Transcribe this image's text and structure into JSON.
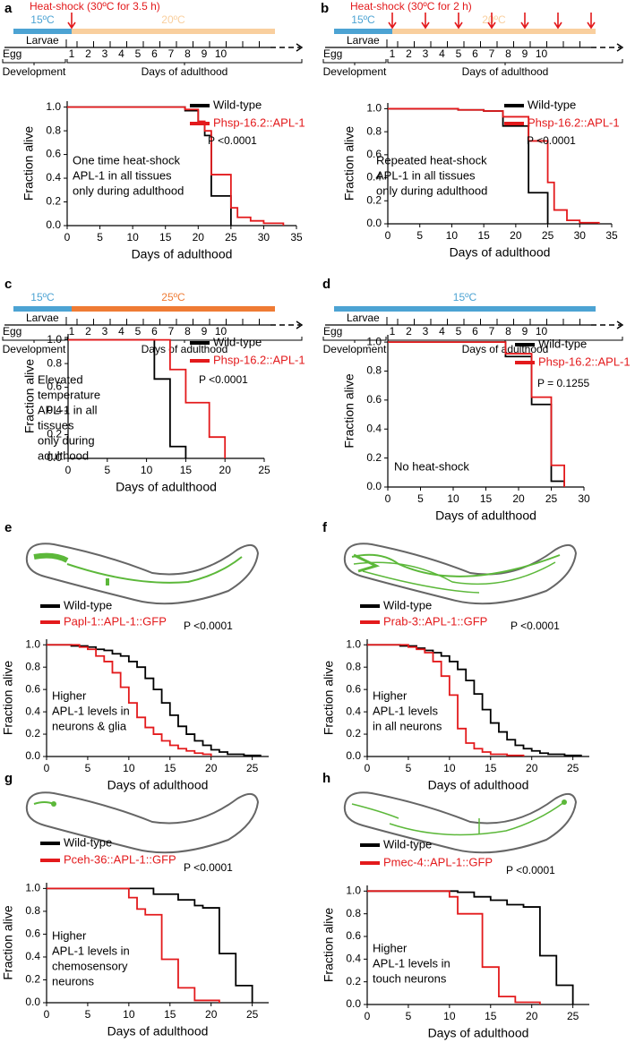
{
  "chart_data": [
    {
      "panel": "a",
      "type": "line",
      "step": true,
      "timeline": {
        "heat_shock_label": "Heat-shock (30ºC for 3.5 h)",
        "heat_shock_days": [
          1
        ],
        "segments": [
          {
            "label": "15ºC",
            "color": "#4ca3d3"
          },
          {
            "label": "20ºC",
            "color": "#f9cf9e"
          }
        ],
        "egg": "Egg",
        "larvae": "Larvae",
        "days": [
          1,
          2,
          3,
          4,
          5,
          6,
          7,
          8,
          9,
          10
        ],
        "development": "Development",
        "adulthood": "Days of adulthood"
      },
      "xlabel": "Days of adulthood",
      "ylabel": "Fraction alive",
      "xlim": [
        0,
        35
      ],
      "xticks": [
        0,
        5,
        10,
        15,
        20,
        25,
        30,
        35
      ],
      "ylim": [
        0,
        1.05
      ],
      "yticks": [
        {
          "value": 0,
          "label": "0.0"
        },
        0.2,
        0.4,
        0.6,
        0.8,
        {
          "value": 1,
          "label": "1.0"
        }
      ],
      "series": [
        {
          "name": "Wild-type",
          "color": "#000000",
          "x": [
            0,
            18,
            20,
            21,
            22,
            25
          ],
          "values": [
            1,
            0.97,
            0.87,
            0.76,
            0.25,
            0
          ]
        },
        {
          "name": "Phsp-16.2::APL-1",
          "color": "#e31a1c",
          "x": [
            0,
            18,
            20,
            21,
            22,
            25,
            26,
            28,
            30,
            33
          ],
          "values": [
            1,
            0.98,
            0.88,
            0.8,
            0.43,
            0.15,
            0.07,
            0.04,
            0.02,
            0
          ]
        }
      ],
      "p_value": "P <0.0001",
      "annotation": [
        "One time heat-shock",
        "APL-1 in all tissues",
        "only during adulthood"
      ]
    },
    {
      "panel": "b",
      "type": "line",
      "step": true,
      "timeline": {
        "heat_shock_label": "Heat-shock (30ºC for 2 h)",
        "heat_shock_days": [
          1,
          3,
          5,
          7,
          9,
          11,
          13
        ],
        "segments": [
          {
            "label": "15ºC",
            "color": "#4ca3d3"
          },
          {
            "label": "20ºC",
            "color": "#f9cf9e"
          }
        ],
        "egg": "Egg",
        "larvae": "Larvae",
        "days": [
          1,
          2,
          3,
          4,
          5,
          6,
          7,
          8,
          9,
          10
        ],
        "development": "Development",
        "adulthood": "Days of adulthood"
      },
      "xlabel": "Days of adulthood",
      "ylabel": "Fraction alive",
      "xlim": [
        0,
        35
      ],
      "xticks": [
        0,
        5,
        10,
        15,
        20,
        25,
        30,
        35
      ],
      "ylim": [
        0,
        1.05
      ],
      "yticks": [
        {
          "value": 0,
          "label": "0.0"
        },
        0.2,
        0.4,
        0.6,
        0.8,
        {
          "value": 1,
          "label": "1.0"
        }
      ],
      "series": [
        {
          "name": "Wild-type",
          "color": "#000000",
          "x": [
            0,
            11,
            15,
            18,
            22,
            25
          ],
          "values": [
            1,
            0.99,
            0.98,
            0.85,
            0.27,
            0
          ]
        },
        {
          "name": "Phsp-16.2::APL-1",
          "color": "#e31a1c",
          "x": [
            0,
            11,
            15,
            18,
            22,
            25,
            26,
            28,
            30,
            33
          ],
          "values": [
            1,
            0.99,
            0.98,
            0.93,
            0.72,
            0.36,
            0.12,
            0.03,
            0.01,
            0
          ]
        }
      ],
      "p_value": "P <0.0001",
      "annotation": [
        "Repeated heat-shock",
        "APL-1 in all tissues",
        "only during adulthood"
      ]
    },
    {
      "panel": "c",
      "type": "line",
      "step": true,
      "timeline": {
        "segments": [
          {
            "label": "15ºC",
            "color": "#4ca3d3"
          },
          {
            "label": "25ºC",
            "color": "#ef7b34"
          }
        ],
        "egg": "Egg",
        "larvae": "Larvae",
        "days": [
          1,
          2,
          3,
          4,
          5,
          6,
          7,
          8,
          9,
          10
        ],
        "development": "Development",
        "adulthood": "Days of adulthood"
      },
      "xlabel": "Days of adulthood",
      "ylabel": "Fraction alive",
      "xlim": [
        0,
        25
      ],
      "xticks": [
        0,
        5,
        10,
        15,
        20,
        25
      ],
      "ylim": [
        0,
        1.05
      ],
      "yticks": [
        {
          "value": 0,
          "label": "0.0"
        },
        0.2,
        0.4,
        0.6,
        0.8,
        {
          "value": 1,
          "label": "1.0"
        }
      ],
      "series": [
        {
          "name": "Wild-type",
          "color": "#000000",
          "x": [
            0,
            11,
            13,
            15
          ],
          "values": [
            1,
            0.67,
            0.1,
            0
          ]
        },
        {
          "name": "Phsp-16.2::APL-1",
          "color": "#e31a1c",
          "x": [
            0,
            13,
            15,
            18,
            20
          ],
          "values": [
            1,
            0.75,
            0.47,
            0.18,
            0
          ]
        }
      ],
      "p_value": "P <0.0001",
      "annotation": [
        "Elevated",
        "temperature",
        "APL-1 in all",
        "tissues",
        "only during",
        "adulthood"
      ]
    },
    {
      "panel": "d",
      "type": "line",
      "step": true,
      "timeline": {
        "segments": [
          {
            "label": "15ºC",
            "color": "#4ca3d3"
          }
        ],
        "egg": "Egg",
        "larvae": "Larvae",
        "days": [
          1,
          2,
          3,
          4,
          5,
          6,
          7,
          8,
          9,
          10
        ],
        "development": "Development",
        "adulthood": "Days of adulthood"
      },
      "xlabel": "Days of adulthood",
      "ylabel": "Fraction alive",
      "xlim": [
        0,
        30
      ],
      "xticks": [
        0,
        5,
        10,
        15,
        20,
        25,
        30
      ],
      "ylim": [
        0,
        1.05
      ],
      "yticks": [
        {
          "value": 0,
          "label": "0.0"
        },
        0.2,
        0.4,
        0.6,
        0.8,
        {
          "value": 1,
          "label": "1.0"
        }
      ],
      "series": [
        {
          "name": "Wild-type",
          "color": "#000000",
          "x": [
            0,
            18,
            22,
            25,
            27
          ],
          "values": [
            1,
            0.9,
            0.57,
            0.04,
            0
          ]
        },
        {
          "name": "Phsp-16.2::APL-1",
          "color": "#e31a1c",
          "x": [
            0,
            18,
            22,
            25,
            27
          ],
          "values": [
            1,
            0.92,
            0.62,
            0.15,
            0
          ]
        }
      ],
      "p_value": "P = 0.1255",
      "annotation": [
        "No heat-shock"
      ]
    },
    {
      "panel": "e",
      "type": "line",
      "step": true,
      "xlabel": "Days of adulthood",
      "ylabel": "Fraction alive",
      "xlim": [
        0,
        27
      ],
      "xticks": [
        0,
        5,
        10,
        15,
        20,
        25
      ],
      "ylim": [
        0,
        1.05
      ],
      "yticks": [
        {
          "value": 0,
          "label": "0.0"
        },
        0.2,
        0.4,
        0.6,
        0.8,
        {
          "value": 1,
          "label": "1.0"
        }
      ],
      "series": [
        {
          "name": "Wild-type",
          "color": "#000000",
          "x": [
            0,
            3,
            5,
            6,
            7,
            8,
            9,
            10,
            11,
            12,
            13,
            14,
            15,
            16,
            17,
            18,
            19,
            20,
            21,
            22,
            24,
            26
          ],
          "values": [
            1,
            0.99,
            0.98,
            0.96,
            0.95,
            0.92,
            0.9,
            0.85,
            0.8,
            0.7,
            0.6,
            0.48,
            0.37,
            0.27,
            0.2,
            0.14,
            0.1,
            0.06,
            0.04,
            0.02,
            0.01,
            0
          ]
        },
        {
          "name": "Papl-1::APL-1::GFP",
          "color": "#e31a1c",
          "x": [
            0,
            4,
            5,
            6,
            7,
            8,
            9,
            10,
            11,
            12,
            13,
            14,
            15,
            16,
            17,
            18,
            19,
            20
          ],
          "values": [
            1,
            0.98,
            0.96,
            0.9,
            0.85,
            0.75,
            0.62,
            0.48,
            0.35,
            0.26,
            0.2,
            0.14,
            0.1,
            0.07,
            0.05,
            0.03,
            0.02,
            0
          ]
        }
      ],
      "p_value": "P <0.0001",
      "annotation": [
        "Higher",
        "APL-1 levels in",
        "neurons & glia"
      ]
    },
    {
      "panel": "f",
      "type": "line",
      "step": true,
      "xlabel": "Days of adulthood",
      "ylabel": "Fraction alive",
      "xlim": [
        0,
        27
      ],
      "xticks": [
        0,
        5,
        10,
        15,
        20,
        25
      ],
      "ylim": [
        0,
        1.05
      ],
      "yticks": [
        {
          "value": 0,
          "label": "0.0"
        },
        0.2,
        0.4,
        0.6,
        0.8,
        {
          "value": 1,
          "label": "1.0"
        }
      ],
      "series": [
        {
          "name": "Wild-type",
          "color": "#000000",
          "x": [
            0,
            4,
            6,
            7,
            8,
            9,
            10,
            11,
            12,
            13,
            14,
            15,
            16,
            17,
            18,
            19,
            20,
            21,
            22,
            24,
            26
          ],
          "values": [
            1,
            0.99,
            0.97,
            0.95,
            0.93,
            0.9,
            0.85,
            0.78,
            0.68,
            0.56,
            0.42,
            0.3,
            0.22,
            0.15,
            0.1,
            0.07,
            0.05,
            0.03,
            0.02,
            0.01,
            0
          ]
        },
        {
          "name": "Prab-3::APL-1::GFP",
          "color": "#e31a1c",
          "x": [
            0,
            5,
            6,
            7,
            8,
            9,
            10,
            11,
            12,
            13,
            14,
            15,
            17,
            19
          ],
          "values": [
            1,
            0.98,
            0.96,
            0.93,
            0.85,
            0.72,
            0.55,
            0.25,
            0.12,
            0.07,
            0.04,
            0.02,
            0.01,
            0
          ]
        }
      ],
      "p_value": "P <0.0001",
      "annotation": [
        "Higher",
        "APL-1 levels",
        "in all neurons"
      ]
    },
    {
      "panel": "g",
      "type": "line",
      "step": true,
      "xlabel": "Days of adulthood",
      "ylabel": "Fraction alive",
      "xlim": [
        0,
        27
      ],
      "xticks": [
        0,
        5,
        10,
        15,
        20,
        25
      ],
      "ylim": [
        0,
        1.05
      ],
      "yticks": [
        {
          "value": 0,
          "label": "0.0"
        },
        0.2,
        0.4,
        0.6,
        0.8,
        {
          "value": 1,
          "label": "1.0"
        }
      ],
      "series": [
        {
          "name": "Wild-type",
          "color": "#000000",
          "x": [
            0,
            13,
            16,
            18,
            19,
            21,
            23,
            25
          ],
          "values": [
            1,
            0.95,
            0.9,
            0.85,
            0.83,
            0.43,
            0.15,
            0
          ]
        },
        {
          "name": "Pceh-36::APL-1::GFP",
          "color": "#e31a1c",
          "x": [
            0,
            10,
            11,
            12,
            14,
            16,
            18,
            21
          ],
          "values": [
            1,
            0.92,
            0.82,
            0.77,
            0.38,
            0.13,
            0.02,
            0
          ]
        }
      ],
      "p_value": "P <0.0001",
      "annotation": [
        "Higher",
        "APL-1 levels in",
        "chemosensory",
        "neurons"
      ]
    },
    {
      "panel": "h",
      "type": "line",
      "step": true,
      "xlabel": "Days of adulthood",
      "ylabel": "Fraction alive",
      "xlim": [
        0,
        27
      ],
      "xticks": [
        0,
        5,
        10,
        15,
        20,
        25
      ],
      "ylim": [
        0,
        1.05
      ],
      "yticks": [
        {
          "value": 0,
          "label": "0.0"
        },
        0.2,
        0.4,
        0.6,
        0.8,
        {
          "value": 1,
          "label": "1.0"
        }
      ],
      "series": [
        {
          "name": "Wild-type",
          "color": "#000000",
          "x": [
            0,
            11,
            13,
            15,
            17,
            19,
            21,
            23,
            25
          ],
          "values": [
            1,
            0.99,
            0.95,
            0.92,
            0.88,
            0.86,
            0.43,
            0.17,
            0
          ]
        },
        {
          "name": "Pmec-4::APL-1::GFP",
          "color": "#e31a1c",
          "x": [
            0,
            10,
            11,
            14,
            16,
            18,
            21
          ],
          "values": [
            1,
            0.95,
            0.8,
            0.33,
            0.07,
            0.02,
            0
          ]
        }
      ],
      "p_value": "P <0.0001",
      "annotation": [
        "Higher",
        "APL-1 levels in",
        "touch neurons"
      ]
    }
  ]
}
